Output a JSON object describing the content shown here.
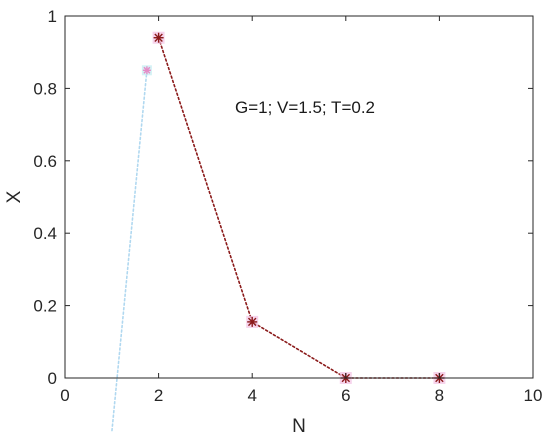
{
  "chart_data": {
    "type": "line",
    "xlabel": "N",
    "ylabel": "X",
    "xlim": [
      0,
      10
    ],
    "ylim": [
      0,
      1
    ],
    "xticks": [
      "0",
      "2",
      "4",
      "6",
      "8",
      "10"
    ],
    "yticks": [
      "0",
      "0.2",
      "0.4",
      "0.6",
      "0.8",
      "1"
    ],
    "annotation": "G=1; V=1.5; T=0.2",
    "grid": false,
    "series": [
      {
        "marker": "asterisk",
        "line_style": "dotted",
        "color": "#8b1a1a",
        "x": [
          2,
          4,
          6,
          8
        ],
        "y": [
          0.94,
          0.155,
          0.0,
          0.0
        ]
      },
      {
        "marker": "star",
        "line_style": "dotted",
        "color": "#b0d8f0",
        "x": [
          1.75,
          1.0
        ],
        "y": [
          0.85,
          -0.15
        ]
      }
    ]
  }
}
